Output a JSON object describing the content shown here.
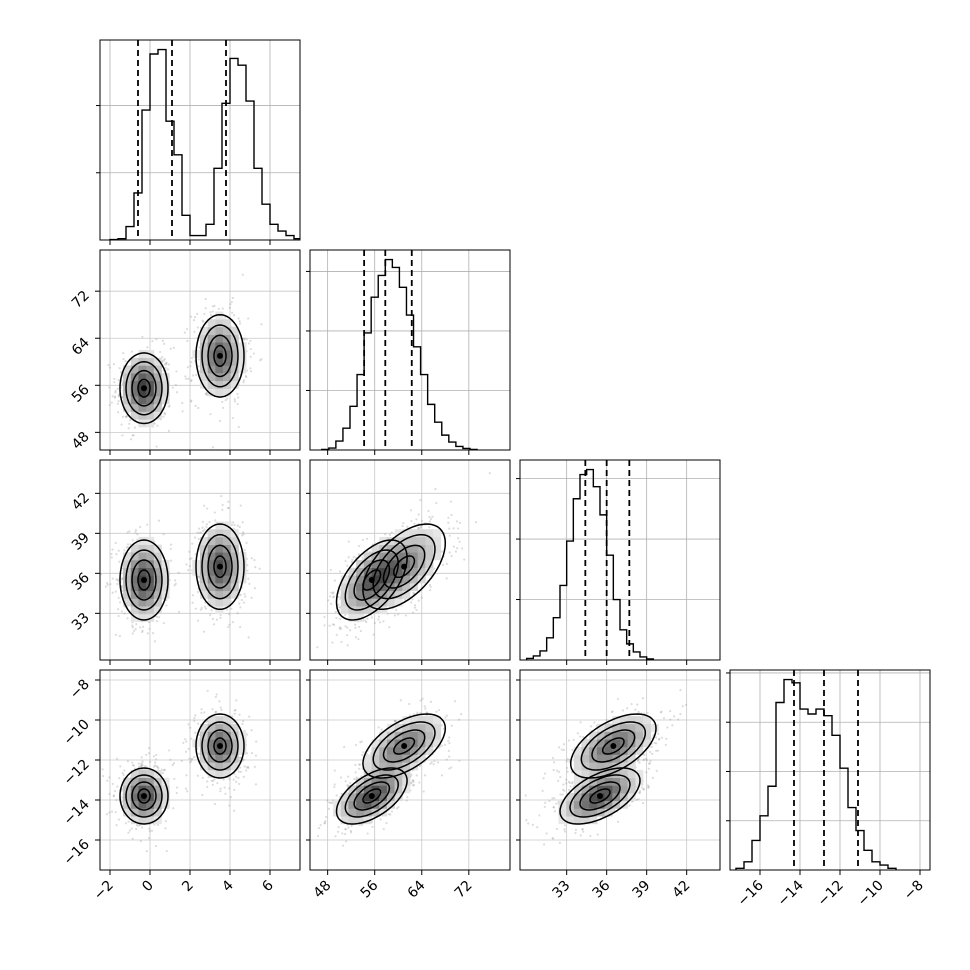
{
  "chart_data": {
    "type": "corner",
    "parameters": 4,
    "axes_labels": [
      "",
      "",
      "",
      ""
    ],
    "ranges": [
      [
        -2.5,
        7.5
      ],
      [
        45,
        79
      ],
      [
        29.5,
        44.5
      ],
      [
        -17.5,
        -7.5
      ]
    ],
    "ticks": [
      [
        -2,
        0,
        2,
        4,
        6
      ],
      [
        48,
        56,
        64,
        72
      ],
      [
        33,
        36,
        39,
        42
      ],
      [
        -16,
        -14,
        -12,
        -10,
        -8
      ]
    ],
    "tick_labels": [
      [
        "−2",
        "0",
        "2",
        "4",
        "6"
      ],
      [
        "48",
        "56",
        "64",
        "72"
      ],
      [
        "33",
        "36",
        "39",
        "42"
      ],
      [
        "−16",
        "−14",
        "−12",
        "−10",
        "−8"
      ]
    ],
    "row_ticks": {
      "1": [
        48,
        56,
        64,
        72
      ],
      "2": [
        33,
        36,
        39,
        42
      ],
      "3": [
        -16,
        -14,
        -12,
        -10,
        -8
      ]
    },
    "row_tick_labels": {
      "1": [
        "48",
        "56",
        "64",
        "72"
      ],
      "2": [
        "33",
        "36",
        "39",
        "42"
      ],
      "3": [
        "−16",
        "−14",
        "−12",
        "−10",
        "−8"
      ]
    },
    "quantiles": [
      [
        -0.6,
        1.1,
        3.8
      ],
      [
        54.2,
        57.8,
        62.3
      ],
      [
        34.4,
        36.0,
        37.7
      ],
      [
        -14.3,
        -12.8,
        -11.1
      ]
    ],
    "histograms": [
      {
        "x_start": -2.0,
        "bin_width": 0.4,
        "counts": [
          1,
          3,
          30,
          105,
          290,
          415,
          425,
          265,
          190,
          55,
          10,
          10,
          35,
          160,
          305,
          405,
          390,
          310,
          160,
          80,
          35,
          20,
          10,
          3,
          1
        ]
      },
      {
        "x_start": 47.0,
        "bin_width": 1.2,
        "counts": [
          3,
          10,
          45,
          110,
          220,
          380,
          590,
          770,
          880,
          960,
          920,
          820,
          680,
          520,
          380,
          230,
          140,
          75,
          40,
          18,
          8,
          3
        ]
      },
      {
        "x_start": 30.0,
        "bin_width": 0.5,
        "counts": [
          8,
          20,
          45,
          110,
          210,
          370,
          590,
          800,
          920,
          945,
          860,
          720,
          520,
          300,
          150,
          80,
          40,
          15,
          5
        ]
      },
      {
        "x_start": -17.2,
        "bin_width": 0.4,
        "counts": [
          5,
          25,
          90,
          165,
          255,
          510,
          580,
          570,
          490,
          475,
          490,
          470,
          410,
          310,
          190,
          120,
          60,
          25,
          15,
          5
        ]
      }
    ],
    "components": [
      {
        "weight": 0.5,
        "mean": [
          -0.3,
          55.5,
          35.5,
          -13.8
        ],
        "sd": [
          0.6,
          3.0,
          1.5,
          0.7
        ]
      },
      {
        "weight": 0.5,
        "mean": [
          3.5,
          61.0,
          36.5,
          -11.3
        ],
        "sd": [
          0.6,
          3.5,
          1.6,
          0.8
        ]
      }
    ],
    "grid": true
  }
}
